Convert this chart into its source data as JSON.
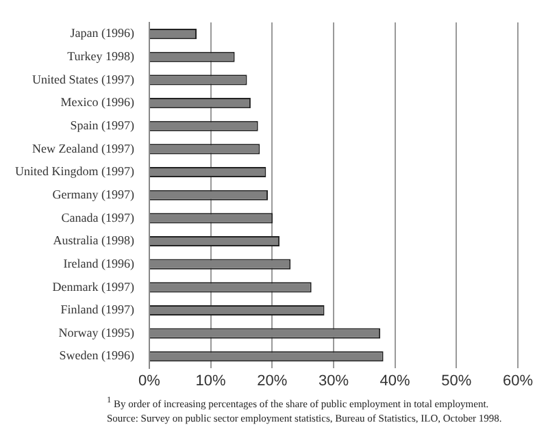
{
  "chart_data": {
    "type": "bar",
    "orientation": "horizontal",
    "categories": [
      "Japan (1996)",
      "Turkey 1998)",
      "United States (1997)",
      "Mexico (1996)",
      "Spain (1997)",
      "New Zealand (1997)",
      "United Kingdom (1997)",
      "Germany (1997)",
      "Canada (1997)",
      "Australia (1998)",
      "Ireland (1996)",
      "Denmark (1997)",
      "Finland (1997)",
      "Norway (1995)",
      "Sweden (1996)"
    ],
    "values": [
      7.7,
      13.9,
      15.9,
      16.5,
      17.7,
      18.0,
      19.0,
      19.3,
      20.1,
      21.2,
      23.0,
      26.4,
      28.5,
      37.6,
      38.1
    ],
    "color": "#808080",
    "xlim": [
      0,
      60
    ],
    "xticks": [
      {
        "value": 0,
        "label": "0%"
      },
      {
        "value": 10,
        "label": "10%"
      },
      {
        "value": 20,
        "label": "20%"
      },
      {
        "value": 30,
        "label": "30%"
      },
      {
        "value": 40,
        "label": "40%"
      },
      {
        "value": 50,
        "label": "50%"
      },
      {
        "value": 60,
        "label": "60%"
      }
    ],
    "grid": "x",
    "annotations": [
      "$^{1}$ By order of increasing percentages of the share of public employment in total employment.",
      "Source: Survey on public sector employment statistics, Bureau of Statistics, ILO, October 1998."
    ]
  }
}
